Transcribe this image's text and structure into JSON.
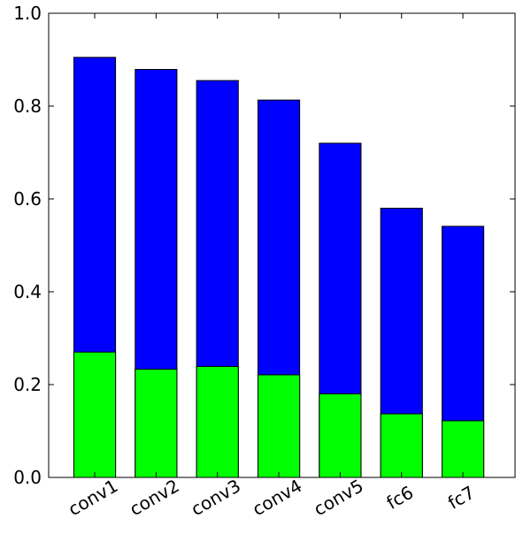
{
  "chart_data": {
    "type": "bar",
    "stacked": false,
    "overlaid": true,
    "categories": [
      "conv1",
      "conv2",
      "conv3",
      "conv4",
      "conv5",
      "fc6",
      "fc7"
    ],
    "series": [
      {
        "values": [
          0.905,
          0.879,
          0.855,
          0.813,
          0.72,
          0.58,
          0.541
        ],
        "color": "#0000ff"
      },
      {
        "values": [
          0.27,
          0.233,
          0.239,
          0.221,
          0.18,
          0.137,
          0.122
        ],
        "color": "#00ff00"
      }
    ],
    "title": "",
    "xlabel": "",
    "ylabel": "",
    "ylim": [
      0.0,
      1.0
    ],
    "yticks": [
      "0.0",
      "0.2",
      "0.4",
      "0.6",
      "0.8",
      "1.0"
    ],
    "xtick_rotation_deg": 30,
    "grid": false,
    "legend": "none"
  }
}
